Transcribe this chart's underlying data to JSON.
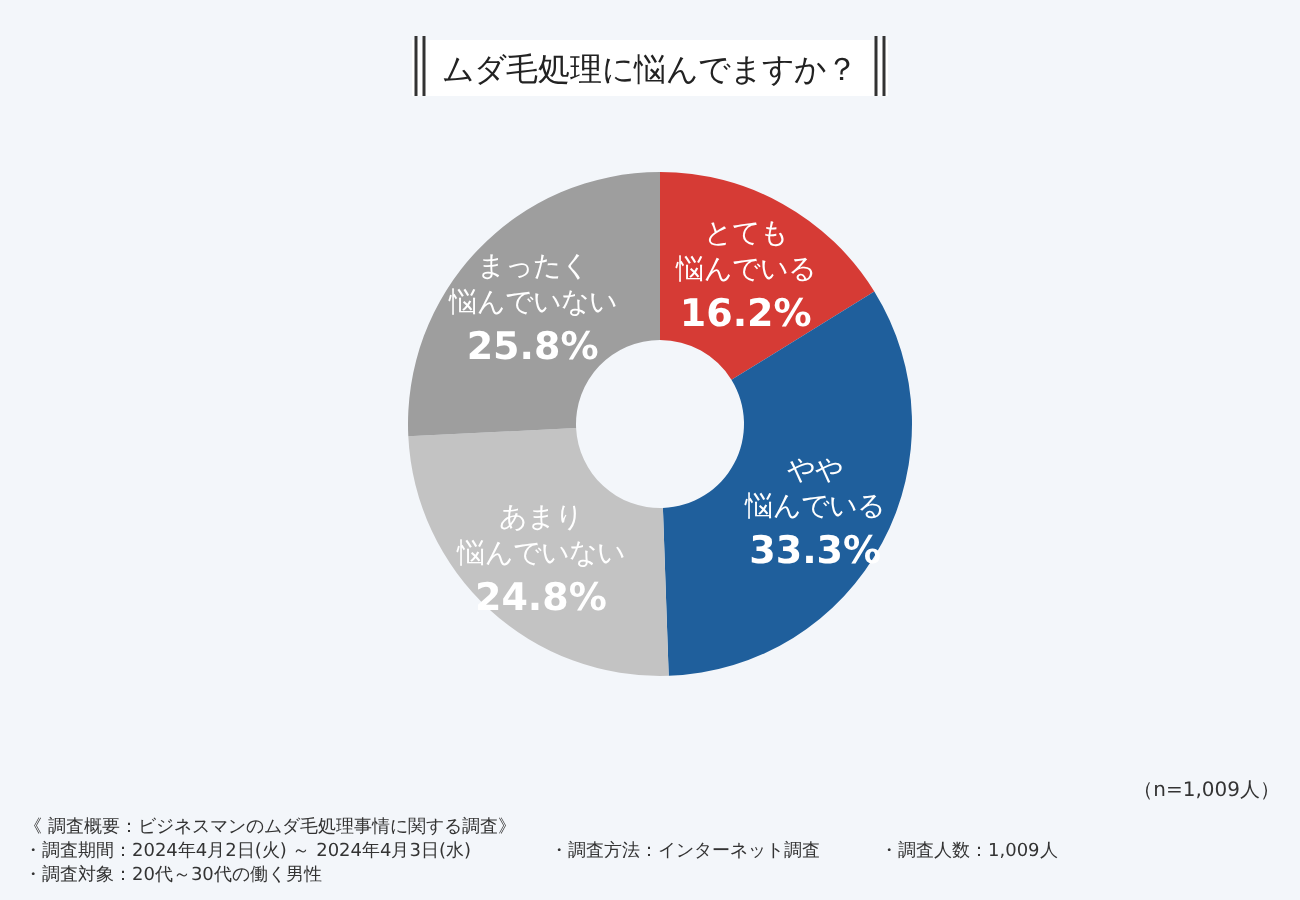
{
  "chart_data": {
    "type": "donut",
    "title": "ムダ毛処理に悩んでますか？",
    "categories": [
      "とても悩んでいる",
      "やや悩んでいる",
      "あまり悩んでいない",
      "まったく悩んでいない"
    ],
    "values": [
      16.2,
      33.3,
      24.8,
      25.8
    ],
    "colors": [
      "#d63b35",
      "#1f5f9c",
      "#c3c3c3",
      "#9e9e9e"
    ],
    "value_labels": [
      "16.2%",
      "33.3%",
      "24.8%",
      "25.8%"
    ],
    "annotations": [
      "（n=1,009人）",
      "《 調査概要：ビジネスマンのムダ毛処理事情に関する調査》",
      "・調査期間：2024年4月2日(火) ～ 2024年4月3日(水)",
      "・調査対象：20代～30代の働く男性",
      "・調査方法：インターネット調査",
      "・調査人数：1,009人"
    ]
  }
}
